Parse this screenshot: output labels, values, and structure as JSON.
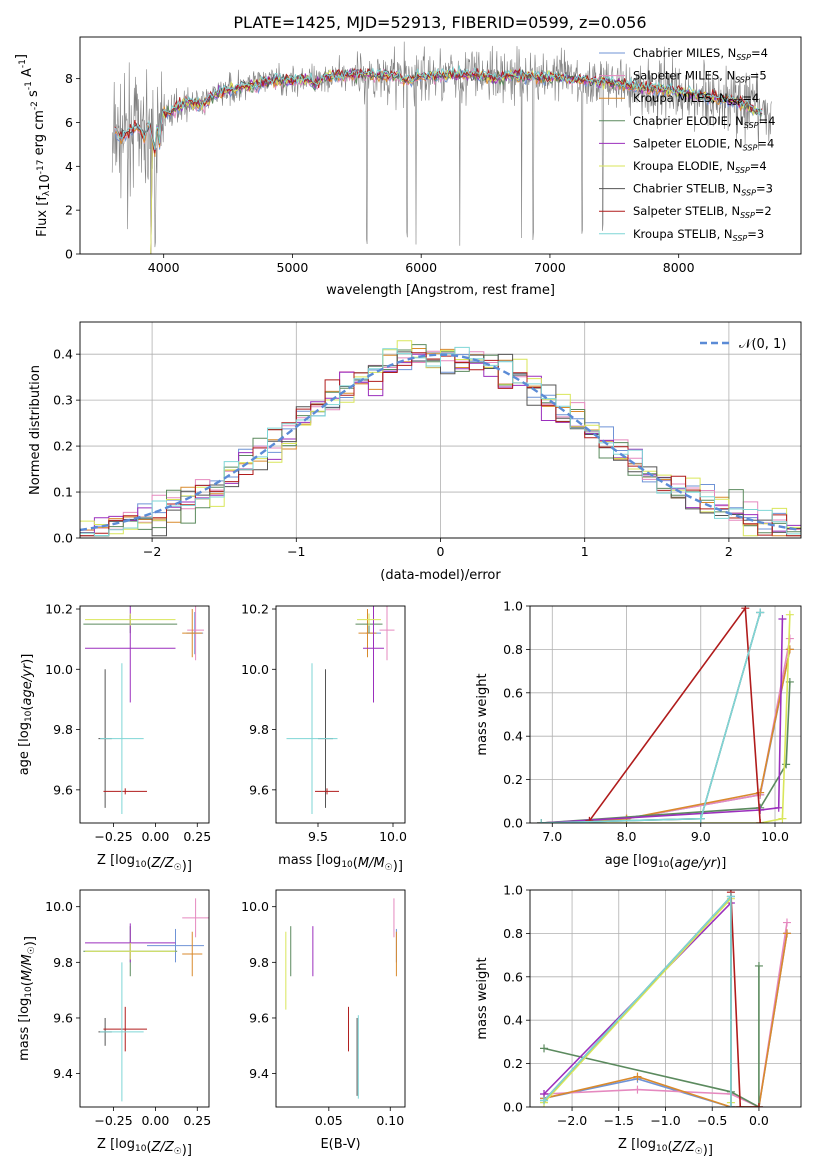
{
  "figure_title": "PLATE=1425, MJD=52913, FIBERID=0599, z=0.056",
  "colors": {
    "Chabrier MILES": "#6f93d6",
    "Salpeter MILES": "#e589bf",
    "Kroupa MILES": "#d98a2c",
    "Chabrier ELODIE": "#5b8a5e",
    "Salpeter ELODIE": "#9b2fbd",
    "Kroupa ELODIE": "#d9e65a",
    "Chabrier STELIB": "#555555",
    "Salpeter STELIB": "#b01c1c",
    "Kroupa STELIB": "#7fd6d6",
    "data": "#808080",
    "normal": "#5b8bd6"
  },
  "chart_data": [
    {
      "id": "spectrum",
      "type": "line",
      "xlabel": "wavelength [Angstrom, rest frame]",
      "ylabel_parts": [
        "Flux [f",
        "λ",
        "10",
        "-17",
        " erg cm",
        "-2",
        " s",
        "-1",
        " A",
        "-1",
        "]"
      ],
      "xlim": [
        3350,
        8950
      ],
      "ylim": [
        0,
        9.9
      ],
      "xticks": [
        4000,
        5000,
        6000,
        7000,
        8000
      ],
      "yticks": [
        0,
        2,
        4,
        6,
        8
      ],
      "legend_position": "top-right",
      "legend": [
        {
          "name": "Chabrier MILES",
          "nssp": "4"
        },
        {
          "name": "Salpeter MILES",
          "nssp": "5"
        },
        {
          "name": "Kroupa MILES",
          "nssp": "4"
        },
        {
          "name": "Chabrier ELODIE",
          "nssp": "4"
        },
        {
          "name": "Salpeter ELODIE",
          "nssp": "4"
        },
        {
          "name": "Kroupa ELODIE",
          "nssp": "4"
        },
        {
          "name": "Chabrier STELIB",
          "nssp": "3"
        },
        {
          "name": "Salpeter STELIB",
          "nssp": "2"
        },
        {
          "name": "Kroupa STELIB",
          "nssp": "3"
        }
      ],
      "legend_nssp_prefix": "N",
      "legend_nssp_sub": "SSP",
      "model_curve": {
        "x": [
          3600,
          3620,
          3660,
          3700,
          3750,
          3800,
          3850,
          3880,
          3900,
          3933,
          3950,
          3968,
          3990,
          4050,
          4100,
          4200,
          4300,
          4400,
          4500,
          4600,
          4700,
          4800,
          4900,
          5000,
          5100,
          5175,
          5250,
          5400,
          5600,
          5800,
          5900,
          6000,
          6200,
          6400,
          6563,
          6700,
          6900,
          7100,
          7300,
          7500,
          7700,
          7900,
          8100,
          8300,
          8500,
          8700
        ],
        "y": [
          4.2,
          5.6,
          5.3,
          5.4,
          5.7,
          5.8,
          5.3,
          5.9,
          5.6,
          4.6,
          6.1,
          4.9,
          6.5,
          6.4,
          6.7,
          6.9,
          6.8,
          7.3,
          7.5,
          7.6,
          7.7,
          7.9,
          7.95,
          7.9,
          8.05,
          7.7,
          8.1,
          8.15,
          8.2,
          8.15,
          7.9,
          8.1,
          8.15,
          8.2,
          8.0,
          8.15,
          8.1,
          8.05,
          7.9,
          7.8,
          7.6,
          7.5,
          7.3,
          7.1,
          6.9,
          6.2
        ]
      }
    },
    {
      "id": "residuals",
      "type": "step-histogram",
      "xlabel": "(data-model)/error",
      "ylabel": "Normed distribution",
      "xlim": [
        -2.5,
        2.5
      ],
      "ylim": [
        0,
        0.47
      ],
      "xticks": [
        -2,
        -1,
        0,
        1,
        2
      ],
      "yticks": [
        0.0,
        0.1,
        0.2,
        0.3,
        0.4
      ],
      "legend_label": "𝒩(0, 1)",
      "legend_position": "top-right",
      "bin_width": 0.1,
      "grid": true
    },
    {
      "id": "age-Z",
      "type": "errorbar",
      "xlabel": "Z [log10(Z/Z☉)]",
      "ylabel": "age  [log10(age/yr)]",
      "xlim": [
        -0.45,
        0.32
      ],
      "ylim": [
        9.49,
        10.21
      ],
      "xticks": [
        -0.25,
        0.0,
        0.25
      ],
      "yticks": [
        9.6,
        9.8,
        10.0,
        10.2
      ],
      "points": [
        {
          "m": "Chabrier MILES",
          "x": 0.235,
          "y": 10.12,
          "xe": 0.05,
          "ye": 0.07
        },
        {
          "m": "Salpeter MILES",
          "x": 0.24,
          "y": 10.13,
          "xe": 0.05,
          "ye": 0.1
        },
        {
          "m": "Kroupa MILES",
          "x": 0.22,
          "y": 10.12,
          "xe": 0.06,
          "ye": 0.08
        },
        {
          "m": "Chabrier ELODIE",
          "x": -0.15,
          "y": 10.15,
          "xe": 0.28,
          "ye": 0.03
        },
        {
          "m": "Salpeter ELODIE",
          "x": -0.15,
          "y": 10.07,
          "xe": 0.27,
          "ye": 0.18
        },
        {
          "m": "Kroupa ELODIE",
          "x": -0.15,
          "y": 10.165,
          "xe": 0.27,
          "ye": 0.02
        },
        {
          "m": "Chabrier STELIB",
          "x": -0.3,
          "y": 9.77,
          "xe": 0.04,
          "ye": 0.23
        },
        {
          "m": "Salpeter STELIB",
          "x": -0.18,
          "y": 9.595,
          "xe": 0.13,
          "ye": 0.01
        },
        {
          "m": "Kroupa STELIB",
          "x": -0.2,
          "y": 9.77,
          "xe": 0.13,
          "ye": 0.25
        }
      ]
    },
    {
      "id": "age-mass",
      "type": "errorbar",
      "xlabel": "mass [log10(M/M☉)]",
      "xlim": [
        9.22,
        10.08
      ],
      "ylim": [
        9.49,
        10.21
      ],
      "xticks": [
        9.5,
        10.0
      ],
      "yticks": [
        9.6,
        9.8,
        10.0,
        10.2
      ],
      "points": [
        {
          "m": "Chabrier MILES",
          "x": 9.87,
          "y": 10.12,
          "xe": 0.05,
          "ye": 0.07
        },
        {
          "m": "Salpeter MILES",
          "x": 9.96,
          "y": 10.13,
          "xe": 0.05,
          "ye": 0.1
        },
        {
          "m": "Kroupa MILES",
          "x": 9.83,
          "y": 10.12,
          "xe": 0.06,
          "ye": 0.08
        },
        {
          "m": "Chabrier ELODIE",
          "x": 9.84,
          "y": 10.15,
          "xe": 0.09,
          "ye": 0.03
        },
        {
          "m": "Salpeter ELODIE",
          "x": 9.87,
          "y": 10.07,
          "xe": 0.07,
          "ye": 0.18
        },
        {
          "m": "Kroupa ELODIE",
          "x": 9.84,
          "y": 10.165,
          "xe": 0.08,
          "ye": 0.02
        },
        {
          "m": "Chabrier STELIB",
          "x": 9.55,
          "y": 9.77,
          "xe": 0.05,
          "ye": 0.23
        },
        {
          "m": "Salpeter STELIB",
          "x": 9.56,
          "y": 9.595,
          "xe": 0.08,
          "ye": 0.01
        },
        {
          "m": "Kroupa STELIB",
          "x": 9.46,
          "y": 9.77,
          "xe": 0.17,
          "ye": 0.25
        }
      ]
    },
    {
      "id": "weight-age",
      "type": "line",
      "xlabel": "age  [log10(age/yr)]",
      "ylabel": "mass weight",
      "xlim": [
        6.7,
        10.35
      ],
      "ylim": [
        0,
        1
      ],
      "xticks": [
        7,
        8,
        9,
        10
      ],
      "yticks": [
        0.0,
        0.2,
        0.4,
        0.6,
        0.8,
        1.0
      ],
      "series": [
        {
          "m": "Chabrier MILES",
          "x": [
            6.85,
            8.0,
            9.8,
            10.2
          ],
          "y": [
            0.0,
            0.02,
            0.13,
            0.8
          ]
        },
        {
          "m": "Salpeter MILES",
          "x": [
            6.85,
            8.0,
            9.8,
            10.2
          ],
          "y": [
            0.0,
            0.02,
            0.13,
            0.85
          ]
        },
        {
          "m": "Kroupa MILES",
          "x": [
            6.85,
            8.0,
            9.8,
            10.2
          ],
          "y": [
            0.0,
            0.02,
            0.14,
            0.8
          ]
        },
        {
          "m": "Chabrier ELODIE",
          "x": [
            6.85,
            9.8,
            10.15,
            10.2
          ],
          "y": [
            0.0,
            0.07,
            0.27,
            0.65
          ]
        },
        {
          "m": "Salpeter ELODIE",
          "x": [
            6.85,
            9.8,
            10.05,
            10.1
          ],
          "y": [
            0.0,
            0.06,
            0.07,
            0.94
          ]
        },
        {
          "m": "Kroupa ELODIE",
          "x": [
            6.85,
            9.8,
            10.1,
            10.2
          ],
          "y": [
            0.0,
            0.0,
            0.02,
            0.96
          ]
        },
        {
          "m": "Chabrier STELIB",
          "x": [
            6.85,
            9.0,
            9.8
          ],
          "y": [
            0.0,
            0.02,
            0.97
          ]
        },
        {
          "m": "Salpeter STELIB",
          "x": [
            7.5,
            9.6,
            9.8
          ],
          "y": [
            0.01,
            0.99,
            0.0
          ]
        },
        {
          "m": "Kroupa STELIB",
          "x": [
            6.85,
            9.0,
            9.8
          ],
          "y": [
            0.0,
            0.02,
            0.97
          ]
        }
      ]
    },
    {
      "id": "mass-Z",
      "type": "errorbar",
      "xlabel": "Z [log10(Z/Z☉)]",
      "ylabel": "mass [log10(M/M☉)]",
      "xlim": [
        -0.45,
        0.32
      ],
      "ylim": [
        9.28,
        10.06
      ],
      "xticks": [
        -0.25,
        0.0,
        0.25
      ],
      "yticks": [
        9.4,
        9.6,
        9.8,
        10.0
      ],
      "points": [
        {
          "m": "Chabrier MILES",
          "x": 0.12,
          "y": 9.86,
          "xe": 0.17,
          "ye": 0.06
        },
        {
          "m": "Salpeter MILES",
          "x": 0.24,
          "y": 9.96,
          "xe": 0.08,
          "ye": 0.07
        },
        {
          "m": "Kroupa MILES",
          "x": 0.22,
          "y": 9.83,
          "xe": 0.06,
          "ye": 0.08
        },
        {
          "m": "Chabrier ELODIE",
          "x": -0.15,
          "y": 9.84,
          "xe": 0.28,
          "ye": 0.09
        },
        {
          "m": "Salpeter ELODIE",
          "x": -0.15,
          "y": 9.87,
          "xe": 0.27,
          "ye": 0.07
        },
        {
          "m": "Kroupa ELODIE",
          "x": -0.15,
          "y": 9.84,
          "xe": 0.27,
          "ye": 0.03
        },
        {
          "m": "Chabrier STELIB",
          "x": -0.3,
          "y": 9.55,
          "xe": 0.04,
          "ye": 0.05
        },
        {
          "m": "Salpeter STELIB",
          "x": -0.18,
          "y": 9.56,
          "xe": 0.13,
          "ye": 0.08
        },
        {
          "m": "Kroupa STELIB",
          "x": -0.2,
          "y": 9.55,
          "xe": 0.13,
          "ye": 0.25
        }
      ]
    },
    {
      "id": "mass-EBV",
      "type": "errorbar",
      "xlabel": "E(B-V)",
      "xlim": [
        0.007,
        0.112
      ],
      "ylim": [
        9.28,
        10.06
      ],
      "xticks": [
        0.05,
        0.1
      ],
      "yticks": [
        9.4,
        9.6,
        9.8,
        10.0
      ],
      "points": [
        {
          "m": "Chabrier MILES",
          "x": 0.105,
          "y": 9.86,
          "xe": 0.0,
          "ye": 0.06
        },
        {
          "m": "Salpeter MILES",
          "x": 0.103,
          "y": 9.96,
          "xe": 0.0,
          "ye": 0.07
        },
        {
          "m": "Kroupa MILES",
          "x": 0.105,
          "y": 9.83,
          "xe": 0.0,
          "ye": 0.08
        },
        {
          "m": "Chabrier ELODIE",
          "x": 0.019,
          "y": 9.84,
          "xe": 0.0,
          "ye": 0.09
        },
        {
          "m": "Salpeter ELODIE",
          "x": 0.037,
          "y": 9.84,
          "xe": 0.0,
          "ye": 0.09
        },
        {
          "m": "Kroupa ELODIE",
          "x": 0.015,
          "y": 9.77,
          "xe": 0.0,
          "ye": 0.14
        },
        {
          "m": "Chabrier STELIB",
          "x": 0.073,
          "y": 9.46,
          "xe": 0.0,
          "ye": 0.14
        },
        {
          "m": "Salpeter STELIB",
          "x": 0.066,
          "y": 9.56,
          "xe": 0.0,
          "ye": 0.08
        },
        {
          "m": "Kroupa STELIB",
          "x": 0.074,
          "y": 9.46,
          "xe": 0.0,
          "ye": 0.15
        }
      ]
    },
    {
      "id": "weight-Z",
      "type": "line",
      "xlabel": "Z [log10(Z/Z☉)]",
      "ylabel": "mass weight",
      "xlim": [
        -2.45,
        0.45
      ],
      "ylim": [
        0,
        1
      ],
      "xticks": [
        -2.0,
        -1.5,
        -1.0,
        -0.5,
        0.0
      ],
      "yticks": [
        0.0,
        0.2,
        0.4,
        0.6,
        0.8,
        1.0
      ],
      "series": [
        {
          "m": "Chabrier MILES",
          "x": [
            -2.3,
            -1.3,
            -0.3,
            0.0,
            0.3
          ],
          "y": [
            0.04,
            0.13,
            0.0,
            0.0,
            0.8
          ]
        },
        {
          "m": "Salpeter MILES",
          "x": [
            -2.3,
            -1.3,
            -0.3,
            0.0,
            0.3
          ],
          "y": [
            0.06,
            0.08,
            0.06,
            0.0,
            0.85
          ]
        },
        {
          "m": "Kroupa MILES",
          "x": [
            -2.3,
            -1.3,
            -0.3,
            0.0,
            0.3
          ],
          "y": [
            0.04,
            0.14,
            0.0,
            0.0,
            0.8
          ]
        },
        {
          "m": "Chabrier ELODIE",
          "x": [
            -2.3,
            -0.3,
            0.0,
            0.0
          ],
          "y": [
            0.27,
            0.07,
            0.0,
            0.65
          ]
        },
        {
          "m": "Salpeter ELODIE",
          "x": [
            -2.3,
            -0.3,
            -0.3
          ],
          "y": [
            0.06,
            0.94,
            0.0
          ]
        },
        {
          "m": "Kroupa ELODIE",
          "x": [
            -2.3,
            -0.3,
            -0.3
          ],
          "y": [
            0.02,
            0.96,
            0.02
          ]
        },
        {
          "m": "Chabrier STELIB",
          "x": [
            -2.3,
            -0.3,
            -0.3
          ],
          "y": [
            0.03,
            0.97,
            0.0
          ]
        },
        {
          "m": "Salpeter STELIB",
          "x": [
            -0.3,
            -0.2,
            0.0
          ],
          "y": [
            0.99,
            0.0,
            0.0
          ]
        },
        {
          "m": "Kroupa STELIB",
          "x": [
            -2.3,
            -0.3,
            -0.3
          ],
          "y": [
            0.03,
            0.97,
            0.0
          ]
        }
      ]
    }
  ]
}
